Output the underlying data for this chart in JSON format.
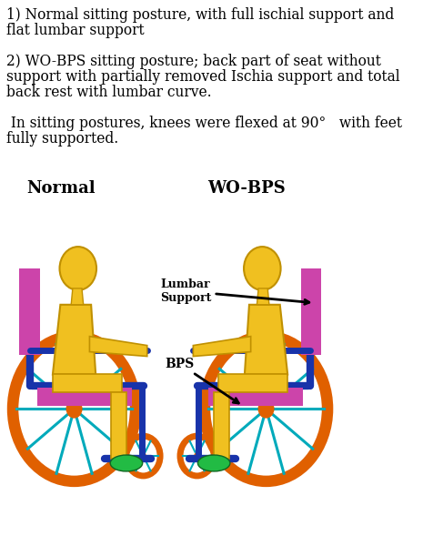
{
  "bg_color": "#ffffff",
  "text1_line1": "1) Normal sitting posture, with full ischial support and",
  "text1_line2": "flat lumbar support",
  "text2_line1": "2) WO-BPS sitting posture; back part of seat without",
  "text2_line2": "support with partially removed Ischia support and total",
  "text2_line3": "back rest with lumbar curve.",
  "text3_line1": " In sitting postures, knees were flexed at 90°   with feet",
  "text3_line2": "fully supported.",
  "label_normal": "Normal",
  "label_wobps": "WO-BPS",
  "label_lumbar": "Lumbar\nSupport",
  "label_bps": "BPS",
  "yellow": "#F0C020",
  "orange_rim": "#E06000",
  "magenta": "#CC44AA",
  "blue": "#1833AA",
  "cyan": "#00AABB",
  "green": "#22BB44",
  "dark_yellow": "#C09000",
  "fig_width": 4.76,
  "fig_height": 5.89,
  "dpi": 100
}
